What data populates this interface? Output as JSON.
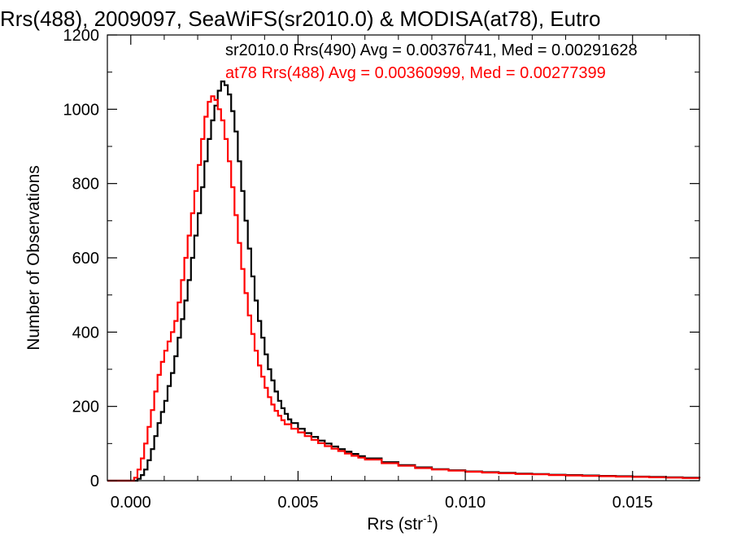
{
  "chart_data": {
    "type": "line",
    "title": "Rrs(488), 2009097, SeaWiFS(sr2010.0) & MODISA(at78), Eutro",
    "xlabel": "Rrs (str",
    "xlabel_sup": "-1",
    "xlabel_close": ")",
    "ylabel": "Number of Observations",
    "xlim": [
      -0.0007,
      0.017
    ],
    "ylim": [
      0,
      1200
    ],
    "x_ticks": [
      0.0,
      0.005,
      0.01,
      0.015
    ],
    "x_tick_labels": [
      "0.000",
      "0.005",
      "0.010",
      "0.015"
    ],
    "y_ticks": [
      0,
      200,
      400,
      600,
      800,
      1000,
      1200
    ],
    "y_tick_labels": [
      "0",
      "200",
      "400",
      "600",
      "800",
      "1000",
      "1200"
    ],
    "grid": false,
    "legend_position": "top-right",
    "series": [
      {
        "name": "sr2010.0 Rrs(490)",
        "legend": "sr2010.0 Rrs(490) Avg = 0.00376741, Med = 0.00291628",
        "color": "#000000",
        "points": [
          [
            -0.0007,
            0
          ],
          [
            0.0001,
            0
          ],
          [
            0.0002,
            5
          ],
          [
            0.0003,
            15
          ],
          [
            0.0004,
            30
          ],
          [
            0.0005,
            55
          ],
          [
            0.0006,
            85
          ],
          [
            0.0007,
            120
          ],
          [
            0.0008,
            155
          ],
          [
            0.0009,
            185
          ],
          [
            0.001,
            215
          ],
          [
            0.0011,
            255
          ],
          [
            0.0012,
            290
          ],
          [
            0.0013,
            335
          ],
          [
            0.0014,
            385
          ],
          [
            0.0015,
            435
          ],
          [
            0.0016,
            485
          ],
          [
            0.0017,
            540
          ],
          [
            0.0018,
            600
          ],
          [
            0.0019,
            660
          ],
          [
            0.002,
            720
          ],
          [
            0.0021,
            790
          ],
          [
            0.0022,
            860
          ],
          [
            0.0023,
            920
          ],
          [
            0.0024,
            970
          ],
          [
            0.0025,
            1010
          ],
          [
            0.0026,
            1050
          ],
          [
            0.0027,
            1075
          ],
          [
            0.0028,
            1065
          ],
          [
            0.0029,
            1040
          ],
          [
            0.003,
            995
          ],
          [
            0.0031,
            940
          ],
          [
            0.0032,
            860
          ],
          [
            0.0033,
            780
          ],
          [
            0.0034,
            700
          ],
          [
            0.0035,
            625
          ],
          [
            0.0036,
            550
          ],
          [
            0.0037,
            485
          ],
          [
            0.0038,
            430
          ],
          [
            0.0039,
            385
          ],
          [
            0.004,
            340
          ],
          [
            0.0041,
            300
          ],
          [
            0.0042,
            270
          ],
          [
            0.0043,
            240
          ],
          [
            0.0044,
            215
          ],
          [
            0.0045,
            195
          ],
          [
            0.0046,
            180
          ],
          [
            0.0047,
            165
          ],
          [
            0.0048,
            155
          ],
          [
            0.005,
            140
          ],
          [
            0.0052,
            128
          ],
          [
            0.0054,
            118
          ],
          [
            0.0056,
            108
          ],
          [
            0.0058,
            100
          ],
          [
            0.006,
            92
          ],
          [
            0.0062,
            85
          ],
          [
            0.0064,
            78
          ],
          [
            0.0066,
            72
          ],
          [
            0.0068,
            66
          ],
          [
            0.007,
            60
          ],
          [
            0.0075,
            50
          ],
          [
            0.008,
            42
          ],
          [
            0.0085,
            36
          ],
          [
            0.009,
            31
          ],
          [
            0.0095,
            28
          ],
          [
            0.01,
            25
          ],
          [
            0.0105,
            23
          ],
          [
            0.011,
            21
          ],
          [
            0.0115,
            19
          ],
          [
            0.012,
            18
          ],
          [
            0.0125,
            16
          ],
          [
            0.013,
            15
          ],
          [
            0.0135,
            14
          ],
          [
            0.014,
            13
          ],
          [
            0.0145,
            12
          ],
          [
            0.015,
            11
          ],
          [
            0.0155,
            10
          ],
          [
            0.016,
            9
          ],
          [
            0.0165,
            8
          ],
          [
            0.017,
            7
          ]
        ]
      },
      {
        "name": "at78 Rrs(488)",
        "legend": "at78 Rrs(488) Avg = 0.00360999, Med = 0.00277399",
        "color": "#ff0000",
        "points": [
          [
            -0.0007,
            0
          ],
          [
            0.0,
            0
          ],
          [
            0.0001,
            8
          ],
          [
            0.0002,
            30
          ],
          [
            0.0003,
            60
          ],
          [
            0.0004,
            100
          ],
          [
            0.0005,
            145
          ],
          [
            0.0006,
            190
          ],
          [
            0.0007,
            240
          ],
          [
            0.0008,
            285
          ],
          [
            0.0009,
            320
          ],
          [
            0.001,
            350
          ],
          [
            0.0011,
            375
          ],
          [
            0.0012,
            400
          ],
          [
            0.0013,
            430
          ],
          [
            0.0014,
            480
          ],
          [
            0.0015,
            540
          ],
          [
            0.0016,
            600
          ],
          [
            0.0017,
            660
          ],
          [
            0.0018,
            720
          ],
          [
            0.0019,
            780
          ],
          [
            0.002,
            850
          ],
          [
            0.0021,
            920
          ],
          [
            0.0022,
            980
          ],
          [
            0.0023,
            1020
          ],
          [
            0.0024,
            1035
          ],
          [
            0.0025,
            1025
          ],
          [
            0.0026,
            1000
          ],
          [
            0.0027,
            970
          ],
          [
            0.0028,
            920
          ],
          [
            0.0029,
            860
          ],
          [
            0.003,
            790
          ],
          [
            0.0031,
            715
          ],
          [
            0.0032,
            640
          ],
          [
            0.0033,
            570
          ],
          [
            0.0034,
            505
          ],
          [
            0.0035,
            445
          ],
          [
            0.0036,
            395
          ],
          [
            0.0037,
            350
          ],
          [
            0.0038,
            310
          ],
          [
            0.0039,
            280
          ],
          [
            0.004,
            250
          ],
          [
            0.0041,
            225
          ],
          [
            0.0042,
            205
          ],
          [
            0.0043,
            188
          ],
          [
            0.0044,
            175
          ],
          [
            0.0045,
            163
          ],
          [
            0.0046,
            152
          ],
          [
            0.0048,
            140
          ],
          [
            0.005,
            130
          ],
          [
            0.0052,
            120
          ],
          [
            0.0054,
            110
          ],
          [
            0.0056,
            101
          ],
          [
            0.0058,
            93
          ],
          [
            0.006,
            86
          ],
          [
            0.0062,
            80
          ],
          [
            0.0064,
            73
          ],
          [
            0.0066,
            67
          ],
          [
            0.0068,
            62
          ],
          [
            0.007,
            57
          ],
          [
            0.0075,
            47
          ],
          [
            0.008,
            40
          ],
          [
            0.0085,
            34
          ],
          [
            0.009,
            30
          ],
          [
            0.0095,
            27
          ],
          [
            0.01,
            24
          ],
          [
            0.0105,
            22
          ],
          [
            0.011,
            20
          ],
          [
            0.0115,
            18
          ],
          [
            0.012,
            17
          ],
          [
            0.0125,
            15
          ],
          [
            0.013,
            14
          ],
          [
            0.0135,
            13
          ],
          [
            0.014,
            12
          ],
          [
            0.0145,
            11
          ],
          [
            0.015,
            10
          ],
          [
            0.0155,
            9
          ],
          [
            0.016,
            8
          ],
          [
            0.0165,
            7
          ],
          [
            0.017,
            6
          ]
        ]
      }
    ]
  }
}
